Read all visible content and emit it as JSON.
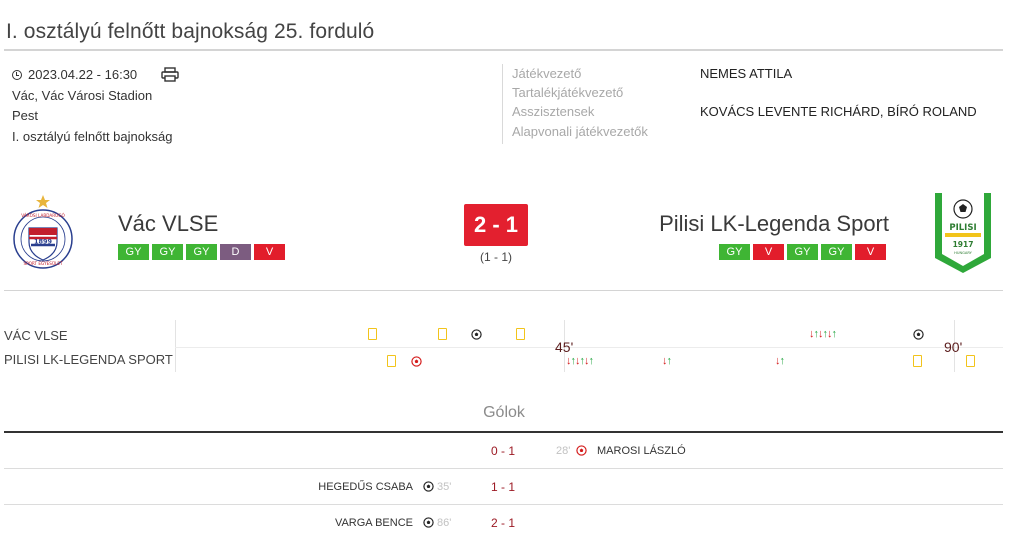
{
  "title": "I. osztályú felnőtt bajnokság 25. forduló",
  "match_info": {
    "datetime": "2023.04.22 - 16:30",
    "venue": "Vác, Vác Városi Stadion",
    "county": "Pest",
    "competition": "I. osztályú felnőtt bajnokság"
  },
  "officials": [
    {
      "role": "Játékvezető",
      "name": "NEMES ATTILA"
    },
    {
      "role": "Tartalékjátékvezető",
      "name": ""
    },
    {
      "role": "Asszisztensek",
      "name": "KOVÁCS LEVENTE RICHÁRD, BÍRÓ ROLAND"
    },
    {
      "role": "Alapvonali játékvezetők",
      "name": ""
    }
  ],
  "home": {
    "name": "Vác VLSE",
    "crest_text": "VÁC VÁROSI LABDARÚGÓ SPORT EGYESÜLET",
    "crest_year": "1899",
    "form": [
      "GY",
      "GY",
      "GY",
      "D",
      "V"
    ]
  },
  "away": {
    "name": "Pilisi LK-Legenda Sport",
    "crest_top": "PILISI",
    "crest_year": "1917",
    "crest_country": "HUNGARY",
    "form": [
      "GY",
      "V",
      "GY",
      "GY",
      "V"
    ]
  },
  "score": "2 - 1",
  "halftime": "(1 - 1)",
  "timeline": {
    "home_label": "VÁC VLSE",
    "away_label": "PILISI LK-LEGENDA SPORT",
    "half_label": "45'",
    "full_label": "90'"
  },
  "goals": {
    "heading": "Gólok",
    "rows": [
      {
        "side": "away",
        "score": "0 - 1",
        "minute": "28'",
        "player": "MAROSI LÁSZLÓ",
        "type": "own-goal"
      },
      {
        "side": "home",
        "score": "1 - 1",
        "minute": "35'",
        "player": "HEGEDŰS CSABA",
        "type": "goal"
      },
      {
        "side": "home",
        "score": "2 - 1",
        "minute": "86'",
        "player": "VARGA BENCE",
        "type": "goal"
      }
    ]
  },
  "colors": {
    "win": "#3fb534",
    "loss": "#e21d2b",
    "draw": "#7c5c80",
    "score_box": "#e3202f",
    "yellow_card": "#f2c41b"
  }
}
